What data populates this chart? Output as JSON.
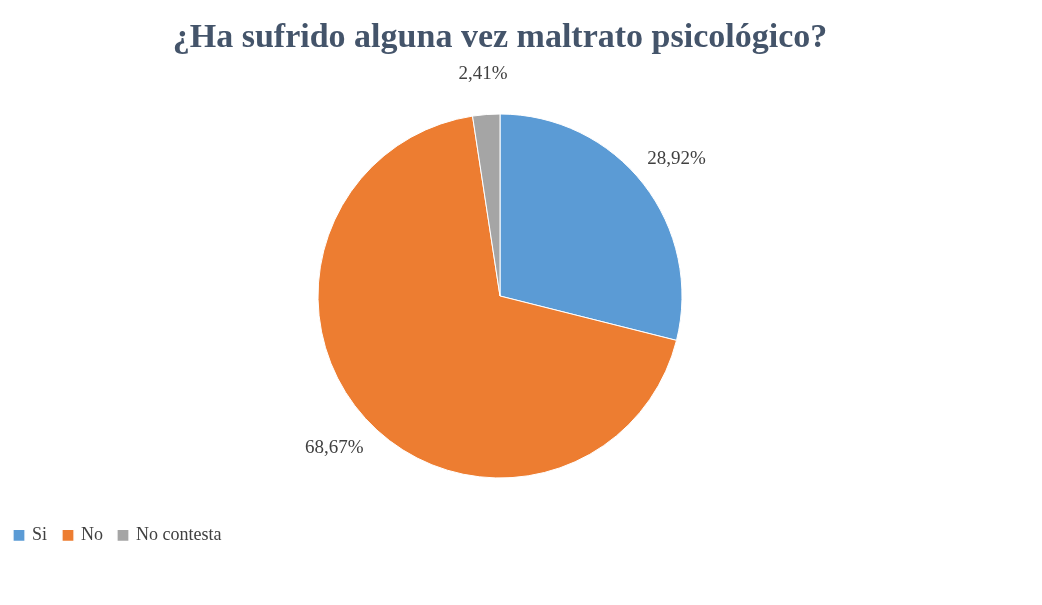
{
  "chart_data": {
    "type": "pie",
    "title": "¿Ha sufrido alguna vez maltrato psicológico?",
    "categories": [
      "Si",
      "No",
      "No contesta"
    ],
    "values": [
      28.92,
      68.67,
      2.41
    ],
    "value_labels": [
      "28,92%",
      "68,67%",
      "2,41%"
    ],
    "colors": [
      "#5b9bd5",
      "#ed7d31",
      "#a5a5a5"
    ],
    "legend": "bottom"
  }
}
